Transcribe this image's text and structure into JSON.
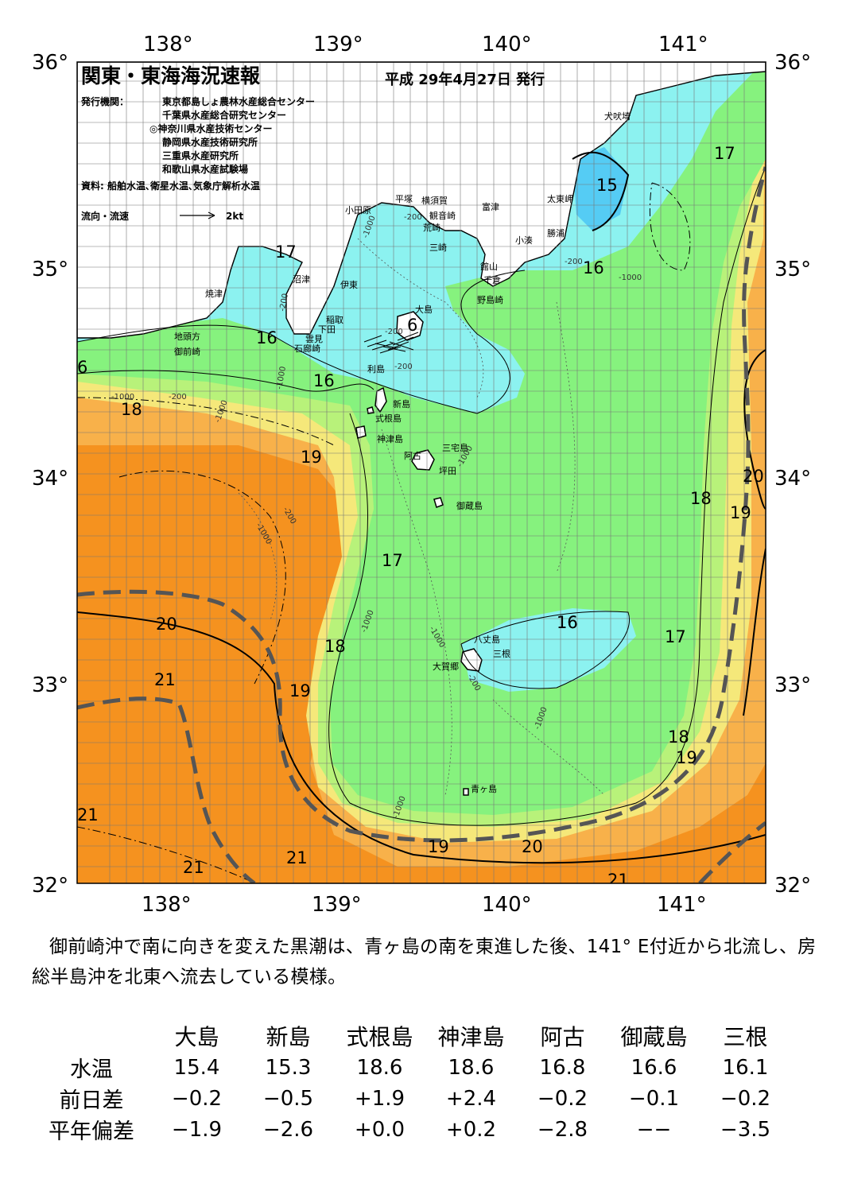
{
  "header": {
    "title": "関東・東海海況速報",
    "date": "平成 29年4月27日 発行",
    "publisher_label": "発行機関：",
    "publishers": [
      "東京都島しょ農林水産総合センター",
      "千葉県水産総合研究センター",
      "◎神奈川県水産技術センター",
      "静岡県水産技術研究所",
      "三重県水産研究所",
      "和歌山県水産試験場"
    ],
    "sources": "資料: 船舶水温､衛星水温､気象庁解析水温",
    "legend_label": "流向・流速",
    "legend_scale": "2kt"
  },
  "axes": {
    "top": [
      "138°",
      "139°",
      "140°",
      "141°"
    ],
    "bottom": [
      "138°",
      "139°",
      "140°",
      "141°"
    ],
    "left": [
      "36°",
      "35°",
      "34°",
      "33°",
      "32°"
    ],
    "right": [
      "36°",
      "35°",
      "34°",
      "33°",
      "32°"
    ]
  },
  "isotherm_labels": [
    "17",
    "15",
    "17",
    "16",
    "16",
    "16",
    "6",
    "16",
    "18",
    "19",
    "20",
    "18",
    "19",
    "17",
    "16",
    "17",
    "20",
    "21",
    "19",
    "18",
    "18",
    "19",
    "21",
    "21",
    "21",
    "19",
    "20",
    "21",
    "6"
  ],
  "places": [
    "犬吠埼",
    "太東岬",
    "勝浦",
    "小湊",
    "富津",
    "館山",
    "千倉",
    "野島崎",
    "横須賀",
    "観音崎",
    "平塚",
    "荒崎",
    "小田原",
    "三崎",
    "沼津",
    "伊東",
    "焼津",
    "稲取",
    "下田",
    "雲見",
    "石廊崎",
    "地頭方",
    "御前崎",
    "大島",
    "利島",
    "新島",
    "式根島",
    "神津島",
    "三宅島",
    "阿古",
    "坪田",
    "御蔵島",
    "八丈島",
    "三根",
    "大賀郷",
    "青ヶ島"
  ],
  "depth_labels": [
    "-200",
    "-1000",
    "-200",
    "-1000",
    "-200",
    "-200",
    "-1000",
    "-200",
    "-1000",
    "-200",
    "-1000",
    "-1000",
    "-200",
    "-1000",
    "-1000",
    "-1000",
    "-1000",
    "-200",
    "-1000"
  ],
  "colors": {
    "c15": "#55ccf4",
    "c16": "#8cf2f0",
    "c17": "#86f27e",
    "c18": "#b8f27a",
    "c19": "#f5e87a",
    "c20": "#f8b14a",
    "c21": "#f5921f",
    "land": "#ffffff",
    "kuroshio_axis": "#555555"
  },
  "summary": "御前崎沖で南に向きを変えた黒潮は、青ヶ島の南を東進した後、141° E付近から北流し、房総半島沖を北東へ流去している模様。",
  "stats": {
    "stations": [
      "大島",
      "新島",
      "式根島",
      "神津島",
      "阿古",
      "御蔵島",
      "三根"
    ],
    "rows": [
      {
        "label": "水温",
        "values": [
          "15.4",
          "15.3",
          "18.6",
          "18.6",
          "16.8",
          "16.6",
          "16.1"
        ]
      },
      {
        "label": "前日差",
        "values": [
          "−0.2",
          "−0.5",
          "+1.9",
          "+2.4",
          "−0.2",
          "−0.1",
          "−0.2"
        ]
      },
      {
        "label": "平年偏差",
        "values": [
          "−1.9",
          "−2.6",
          "+0.0",
          "+0.2",
          "−2.8",
          "−−",
          "−3.5"
        ]
      }
    ]
  }
}
